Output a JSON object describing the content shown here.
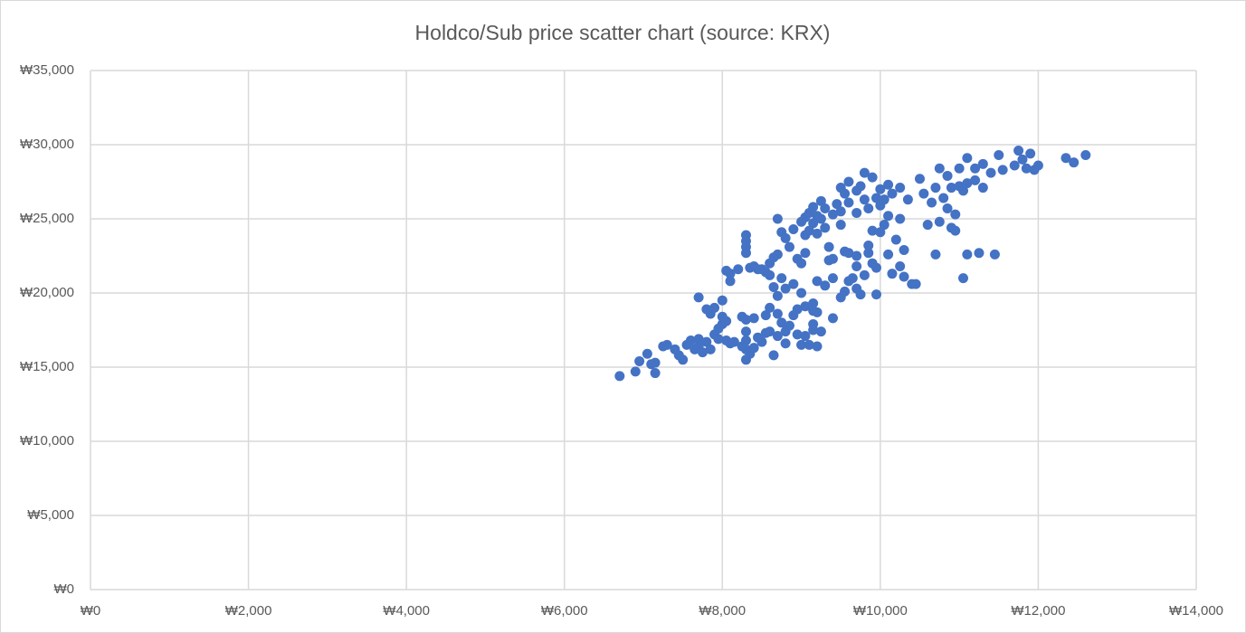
{
  "chart_data": {
    "type": "scatter",
    "title": "Holdco/Sub price scatter chart (source: KRX)",
    "color": "#4472c4",
    "grid": true,
    "xlim": [
      0,
      14000
    ],
    "ylim": [
      0,
      35000
    ],
    "xticks": [
      {
        "value": 0,
        "label": "₩0"
      },
      {
        "value": 2000,
        "label": "₩2,000"
      },
      {
        "value": 4000,
        "label": "₩4,000"
      },
      {
        "value": 6000,
        "label": "₩6,000"
      },
      {
        "value": 8000,
        "label": "₩8,000"
      },
      {
        "value": 10000,
        "label": "₩10,000"
      },
      {
        "value": 12000,
        "label": "₩12,000"
      },
      {
        "value": 14000,
        "label": "₩14,000"
      }
    ],
    "yticks": [
      {
        "value": 0,
        "label": "₩0"
      },
      {
        "value": 5000,
        "label": "₩5,000"
      },
      {
        "value": 10000,
        "label": "₩10,000"
      },
      {
        "value": 15000,
        "label": "₩15,000"
      },
      {
        "value": 20000,
        "label": "₩20,000"
      },
      {
        "value": 25000,
        "label": "₩25,000"
      },
      {
        "value": 30000,
        "label": "₩30,000"
      },
      {
        "value": 35000,
        "label": "₩35,000"
      }
    ],
    "x": [
      6700,
      6900,
      6950,
      7050,
      7100,
      7150,
      7150,
      7250,
      7300,
      7400,
      7450,
      7500,
      7550,
      7600,
      7650,
      7700,
      7700,
      7750,
      7800,
      7850,
      7900,
      7950,
      7950,
      8000,
      8000,
      7800,
      7900,
      8000,
      7700,
      7850,
      8050,
      8050,
      8100,
      8150,
      8100,
      8050,
      8100,
      8200,
      8250,
      8300,
      8300,
      8300,
      8300,
      8300,
      8350,
      8250,
      8400,
      8450,
      8500,
      8550,
      8600,
      8600,
      8650,
      8700,
      8700,
      8750,
      8800,
      8800,
      8850,
      8900,
      8950,
      9000,
      9050,
      9100,
      9150,
      9200,
      9150,
      9200,
      9050,
      9000,
      8900,
      8800,
      8750,
      8700,
      8650,
      8350,
      8300,
      8300,
      8300,
      8300,
      8400,
      8450,
      8500,
      8550,
      8600,
      8600,
      8650,
      8700,
      8700,
      8750,
      8800,
      8850,
      8900,
      8950,
      9000,
      9050,
      9050,
      9000,
      9050,
      9100,
      9100,
      9150,
      9150,
      9200,
      9200,
      9250,
      9250,
      9300,
      9300,
      9350,
      9350,
      9400,
      9400,
      9450,
      9500,
      9500,
      9500,
      9550,
      9600,
      9600,
      9600,
      9550,
      9650,
      9700,
      9700,
      9750,
      9800,
      9850,
      9850,
      9900,
      9900,
      9950,
      9950,
      9700,
      9700,
      9750,
      9800,
      9800,
      9850,
      9900,
      9950,
      10000,
      10000,
      10050,
      10050,
      10100,
      10100,
      10150,
      10200,
      10250,
      10250,
      10300,
      10350,
      10400,
      10450,
      10500,
      10550,
      10600,
      10650,
      10700,
      10700,
      10750,
      10750,
      10800,
      10850,
      10850,
      10900,
      10900,
      10950,
      10950,
      11000,
      11000,
      11050,
      11050,
      11100,
      11100,
      11100,
      11200,
      11200,
      11250,
      11300,
      11300,
      11400,
      11450,
      11500,
      11550,
      11700,
      11750,
      11800,
      11850,
      11900,
      11950,
      12000,
      12350,
      12450,
      12600,
      9400,
      9250,
      9150,
      9200,
      9300,
      9400,
      9500,
      9550,
      9600,
      9700,
      10000,
      10100,
      10150,
      10250,
      10300,
      9150,
      8950,
      8550,
      8400
    ],
    "values": [
      14400,
      14700,
      15400,
      15900,
      15200,
      14600,
      15300,
      16400,
      16500,
      16200,
      15800,
      15500,
      16500,
      16800,
      16200,
      16900,
      16400,
      16000,
      16700,
      16200,
      17200,
      16900,
      17600,
      17900,
      18400,
      18900,
      19000,
      19500,
      19700,
      18600,
      18100,
      16800,
      16600,
      16700,
      20800,
      21500,
      21300,
      21600,
      18400,
      18200,
      17400,
      16800,
      16200,
      15500,
      15900,
      16400,
      18300,
      17000,
      16700,
      18500,
      19000,
      17400,
      15800,
      18600,
      17100,
      18000,
      17400,
      16600,
      17800,
      18500,
      17200,
      16500,
      17100,
      16500,
      17900,
      16400,
      18800,
      18700,
      19100,
      20000,
      20600,
      20300,
      21000,
      19800,
      20400,
      21700,
      22700,
      23100,
      23500,
      23900,
      21800,
      21600,
      21600,
      21400,
      21200,
      22000,
      22400,
      22600,
      25000,
      24100,
      23700,
      23100,
      24300,
      22300,
      22000,
      22700,
      23900,
      24800,
      25100,
      25400,
      24200,
      25800,
      24700,
      25200,
      24000,
      26200,
      25000,
      25700,
      24400,
      23100,
      22200,
      22300,
      25300,
      26000,
      25500,
      24600,
      27100,
      26700,
      27500,
      26100,
      22700,
      22800,
      21000,
      20300,
      22500,
      19900,
      21200,
      22700,
      23200,
      24200,
      22000,
      21700,
      19900,
      25400,
      26900,
      27200,
      28100,
      26300,
      25700,
      27800,
      26400,
      25900,
      27000,
      26300,
      24600,
      27300,
      25200,
      26700,
      23600,
      27100,
      25000,
      22900,
      26300,
      20600,
      20600,
      27700,
      26700,
      24600,
      26100,
      27100,
      22600,
      28400,
      24800,
      26400,
      27900,
      25700,
      27100,
      24400,
      24200,
      25300,
      27200,
      28400,
      21000,
      26900,
      29100,
      27400,
      22600,
      28400,
      27600,
      22700,
      28700,
      27100,
      28100,
      22600,
      29300,
      28300,
      28600,
      29600,
      29000,
      28400,
      29400,
      28300,
      28600,
      29100,
      28800,
      29300,
      18300,
      17400,
      19300,
      20800,
      20500,
      21000,
      19700,
      20100,
      20800,
      21800,
      24100,
      22600,
      21300,
      21800,
      21100,
      17500,
      18900,
      17300,
      16300
    ]
  }
}
